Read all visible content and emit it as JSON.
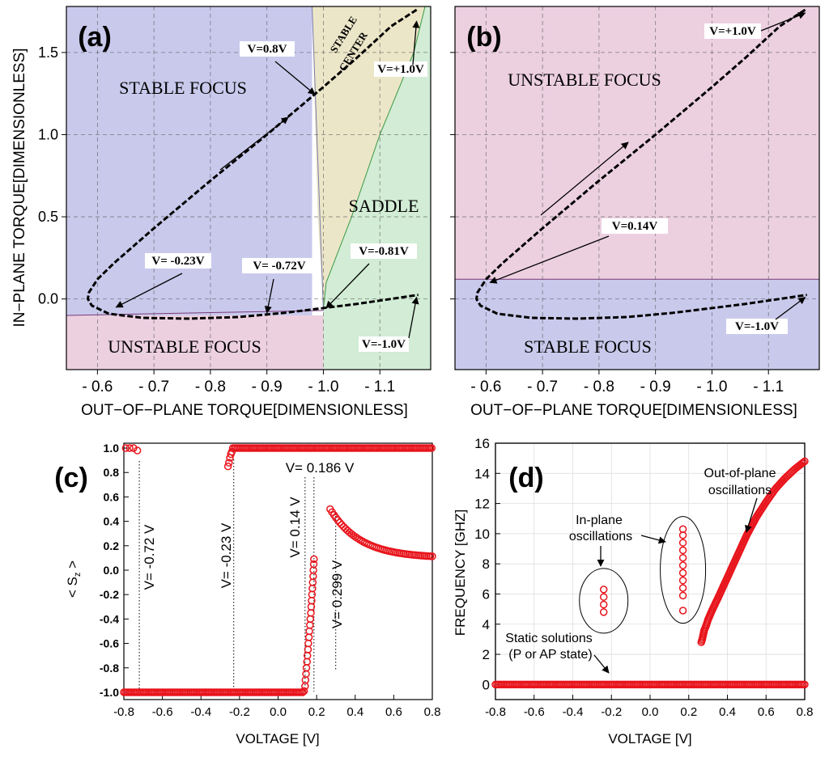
{
  "chart_data": [
    {
      "type": "line",
      "panel_label": "(a)",
      "xlabel": "OUT−OF−PLANE TORQUE[DIMENSIONLESS]",
      "ylabel": "IN−PLANE TORQUE[DIMENSIONLESS]",
      "xlim": [
        -0.545,
        -1.19
      ],
      "ylim": [
        -0.43,
        1.78
      ],
      "xticks": [
        -0.6,
        -0.7,
        -0.8,
        -0.9,
        -1.0,
        -1.1
      ],
      "xtick_labels": [
        "- 0.6",
        "- 0.7",
        "- 0.8",
        "- 0.9",
        "- 1.0",
        "- 1.1"
      ],
      "yticks": [
        0.0,
        0.5,
        1.0,
        1.5
      ],
      "ytick_labels": [
        "0.0",
        "0.5",
        "1.0",
        "1.5"
      ],
      "regions": [
        {
          "label": "STABLE FOCUS",
          "color": "#c9c9ec"
        },
        {
          "label": "UNSTABLE FOCUS",
          "color": "#ecd0e0"
        },
        {
          "label": "STABLE CENTER",
          "color": "#ece6c8"
        },
        {
          "label": "SADDLE",
          "color": "#d2ecd5"
        }
      ],
      "series": [
        {
          "name": "trajectory",
          "x": [
            -1.165,
            -1.12,
            -1.06,
            -1.0,
            -0.9,
            -0.8,
            -0.7,
            -0.63,
            -0.6,
            -0.585,
            -0.583,
            -0.59,
            -0.62,
            -0.68,
            -0.76,
            -0.85,
            -0.93,
            -0.99,
            -1.06,
            -1.12,
            -1.168
          ],
          "y": [
            1.76,
            1.66,
            1.47,
            1.29,
            1.0,
            0.72,
            0.43,
            0.22,
            0.12,
            0.04,
            0.0,
            -0.04,
            -0.09,
            -0.115,
            -0.12,
            -0.11,
            -0.085,
            -0.06,
            -0.03,
            0.0,
            0.025
          ]
        }
      ],
      "annotations": [
        {
          "text": "V=0.8V",
          "x": -0.985,
          "y": 1.245
        },
        {
          "text": "V= -0.23V",
          "x": -0.633,
          "y": -0.05
        },
        {
          "text": "V= -0.72V",
          "x": -0.9,
          "y": -0.085
        },
        {
          "text": "V=-0.81V",
          "x": -1.005,
          "y": -0.055
        },
        {
          "text": "V=+1.0V",
          "x": -1.165,
          "y": 1.69
        },
        {
          "text": "V=-1.0V",
          "x": -1.165,
          "y": 0.01
        }
      ]
    },
    {
      "type": "line",
      "panel_label": "(b)",
      "xlabel": "OUT−OF−PLANE TORQUE[DIMENSIONLESS]",
      "xlim": [
        -0.545,
        -1.19
      ],
      "ylim": [
        -0.43,
        1.78
      ],
      "xticks": [
        -0.6,
        -0.7,
        -0.8,
        -0.9,
        -1.0,
        -1.1
      ],
      "xtick_labels": [
        "- 0.6",
        "- 0.7",
        "- 0.8",
        "- 0.9",
        "- 1.0",
        "- 1.1"
      ],
      "yticks": [
        0.0,
        0.5,
        1.0,
        1.5
      ],
      "regions": [
        {
          "label": "UNSTABLE FOCUS",
          "color": "#ecd0e0"
        },
        {
          "label": "STABLE FOCUS",
          "color": "#c9c9ec"
        }
      ],
      "series": [
        {
          "name": "trajectory",
          "x": [
            -1.165,
            -1.12,
            -1.06,
            -1.0,
            -0.9,
            -0.8,
            -0.7,
            -0.63,
            -0.6,
            -0.585,
            -0.583,
            -0.59,
            -0.62,
            -0.68,
            -0.76,
            -0.85,
            -0.93,
            -0.99,
            -1.06,
            -1.12,
            -1.168
          ],
          "y": [
            1.76,
            1.66,
            1.47,
            1.29,
            1.0,
            0.72,
            0.43,
            0.22,
            0.12,
            0.04,
            0.0,
            -0.04,
            -0.09,
            -0.115,
            -0.12,
            -0.11,
            -0.085,
            -0.06,
            -0.03,
            0.0,
            0.025
          ]
        }
      ],
      "annotations": [
        {
          "text": "V=+1.0V",
          "x": -1.165,
          "y": 1.74
        },
        {
          "text": "V=0.14V",
          "x": -0.607,
          "y": 0.1
        },
        {
          "text": "V=-1.0V",
          "x": -1.165,
          "y": 0.01
        }
      ]
    },
    {
      "type": "scatter",
      "panel_label": "(c)",
      "xlabel": "VOLTAGE [V]",
      "ylabel": "< S",
      "ylabel_sub": "z",
      "ylabel_end": " >",
      "xlim": [
        -0.8,
        0.8
      ],
      "ylim": [
        -1.06,
        1.04
      ],
      "xticks": [
        -0.8,
        -0.6,
        -0.4,
        -0.2,
        0.0,
        0.2,
        0.4,
        0.6,
        0.8
      ],
      "xtick_labels": [
        "-0.8",
        "-0.6",
        "-0.4",
        "-0.2",
        "0.0",
        "0.2",
        "0.4",
        "0.6",
        "0.8"
      ],
      "yticks": [
        -1.0,
        -0.8,
        -0.6,
        -0.4,
        -0.2,
        0.0,
        0.2,
        0.4,
        0.6,
        0.8,
        1.0
      ],
      "ytick_labels": [
        "-1.0",
        "-0.8",
        "-0.6",
        "-0.4",
        "-0.2",
        "0.0",
        "0.2",
        "0.4",
        "0.6",
        "0.8",
        "1.0"
      ],
      "markers": [
        {
          "text": "V= -0.72 V",
          "x": -0.72
        },
        {
          "text": "V= -0.23 V",
          "x": -0.23
        },
        {
          "text": "V= 0.14 V",
          "x": 0.14
        },
        {
          "text": "V= 0.186 V",
          "x": 0.186
        },
        {
          "text": "V= 0.299 V",
          "x": 0.299
        }
      ],
      "points": {
        "low_branch": {
          "x_from": -0.8,
          "x_to": 0.13,
          "y": -1.0
        },
        "left_upper": [
          [
            -0.79,
            1.0
          ],
          [
            -0.77,
            1.0
          ],
          [
            -0.75,
            1.0
          ],
          [
            -0.73,
            0.98
          ]
        ],
        "mid_upper_rise": [
          [
            -0.26,
            0.85
          ],
          [
            -0.255,
            0.88
          ],
          [
            -0.25,
            0.92
          ],
          [
            -0.245,
            0.95
          ],
          [
            -0.24,
            0.97
          ]
        ],
        "mid_upper": {
          "x_from": -0.235,
          "x_to": 0.8,
          "y": 1.0
        },
        "oscillation_rise": [
          [
            0.135,
            -0.99
          ],
          [
            0.14,
            -0.95
          ],
          [
            0.142,
            -0.9
          ],
          [
            0.145,
            -0.85
          ],
          [
            0.147,
            -0.8
          ],
          [
            0.15,
            -0.75
          ],
          [
            0.152,
            -0.7
          ],
          [
            0.155,
            -0.65
          ],
          [
            0.157,
            -0.6
          ],
          [
            0.16,
            -0.55
          ],
          [
            0.162,
            -0.5
          ],
          [
            0.165,
            -0.45
          ],
          [
            0.167,
            -0.4
          ],
          [
            0.17,
            -0.35
          ],
          [
            0.172,
            -0.3
          ],
          [
            0.174,
            -0.25
          ],
          [
            0.176,
            -0.2
          ],
          [
            0.178,
            -0.15
          ],
          [
            0.18,
            -0.1
          ],
          [
            0.182,
            -0.05
          ],
          [
            0.183,
            0.0
          ],
          [
            0.185,
            0.05
          ],
          [
            0.186,
            0.09
          ]
        ],
        "decay": {
          "x_from": 0.27,
          "x_to": 0.8,
          "y0": 0.5,
          "y_end": 0.1
        }
      }
    },
    {
      "type": "scatter",
      "panel_label": "(d)",
      "xlabel": "VOLTAGE [V]",
      "ylabel": "FREQUENCY [GHZ]",
      "xlim": [
        -0.8,
        0.8
      ],
      "ylim": [
        -1.0,
        16.0
      ],
      "xticks": [
        -0.8,
        -0.6,
        -0.4,
        -0.2,
        0.0,
        0.2,
        0.4,
        0.6,
        0.8
      ],
      "xtick_labels": [
        "-0.8",
        "-0.6",
        "-0.4",
        "-0.2",
        "0.0",
        "0.2",
        "0.4",
        "0.6",
        "0.8"
      ],
      "yticks": [
        0,
        2,
        4,
        6,
        8,
        10,
        12,
        14,
        16
      ],
      "ytick_labels": [
        "0",
        "2",
        "4",
        "6",
        "8",
        "10",
        "12",
        "14",
        "16"
      ],
      "annotations": [
        {
          "text": "Static solutions",
          "text2": "(P or AP state)"
        },
        {
          "text": "In-plane",
          "text2": "oscillations"
        },
        {
          "text": "Out-of-plane",
          "text2": "oscillations"
        }
      ],
      "points": {
        "static": {
          "x_from": -0.8,
          "x_to": 0.8,
          "y": 0.0
        },
        "inplane_a": [
          [
            -0.24,
            4.8
          ],
          [
            -0.24,
            5.3
          ],
          [
            -0.24,
            5.8
          ],
          [
            -0.24,
            6.3
          ]
        ],
        "inplane_b": [
          [
            0.17,
            4.9
          ],
          [
            0.17,
            5.9
          ],
          [
            0.17,
            6.4
          ],
          [
            0.17,
            6.9
          ],
          [
            0.17,
            7.4
          ],
          [
            0.17,
            7.9
          ],
          [
            0.17,
            8.4
          ],
          [
            0.17,
            8.9
          ],
          [
            0.17,
            9.4
          ],
          [
            0.17,
            9.9
          ],
          [
            0.17,
            10.3
          ]
        ],
        "outofplane": [
          [
            0.265,
            2.8
          ],
          [
            0.27,
            3.0
          ],
          [
            0.275,
            3.3
          ],
          [
            0.28,
            3.6
          ],
          [
            0.29,
            3.9
          ],
          [
            0.3,
            4.3
          ],
          [
            0.32,
            4.9
          ],
          [
            0.35,
            5.7
          ],
          [
            0.4,
            7.1
          ],
          [
            0.45,
            8.5
          ],
          [
            0.5,
            9.9
          ],
          [
            0.55,
            11.1
          ],
          [
            0.6,
            12.1
          ],
          [
            0.65,
            13.0
          ],
          [
            0.7,
            13.7
          ],
          [
            0.75,
            14.3
          ],
          [
            0.8,
            14.8
          ]
        ]
      }
    }
  ]
}
